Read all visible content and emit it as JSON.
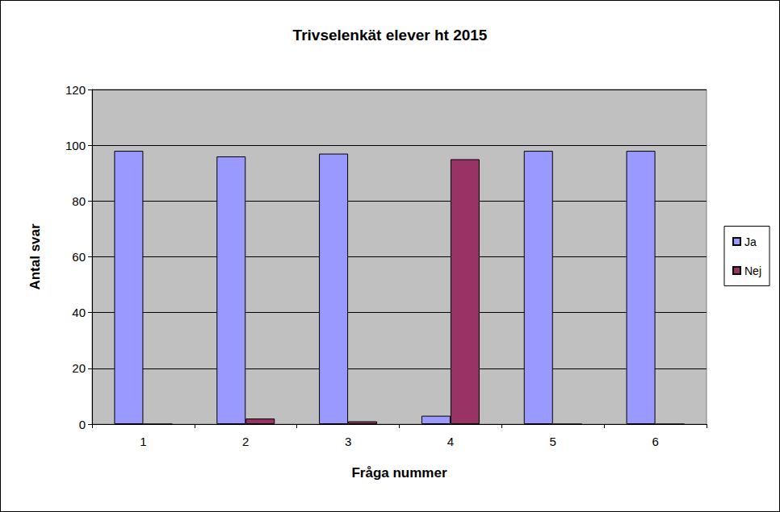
{
  "chart_data": {
    "type": "bar",
    "title": "Trivselenkät elever ht 2015",
    "x_label": "Fråga nummer",
    "y_label": "Antal svar",
    "categories": [
      "1",
      "2",
      "3",
      "4",
      "5",
      "6"
    ],
    "series": [
      {
        "name": "Ja",
        "color": "#9999ff",
        "values": [
          98,
          96,
          97,
          3,
          98,
          98
        ]
      },
      {
        "name": "Nej",
        "color": "#993366",
        "values": [
          0,
          2,
          1,
          95,
          0,
          0
        ]
      }
    ],
    "ylim": [
      0,
      120
    ],
    "yticks": [
      0,
      20,
      40,
      60,
      80,
      100,
      120
    ],
    "grid": true,
    "legend": "right"
  }
}
